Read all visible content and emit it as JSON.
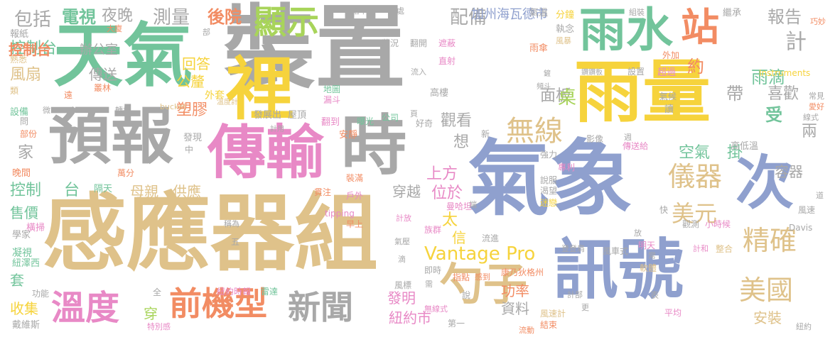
{
  "palette": {
    "gray": "#a8a8a8",
    "sand": "#dfc28a",
    "teal": "#72c49b",
    "blue": "#8fa0ce",
    "pink": "#e889c6",
    "yellow": "#f6d33c",
    "lime": "#a8d45a",
    "orange": "#f28c63"
  },
  "words": [
    {
      "text": "裝置",
      "color": "gray"
    },
    {
      "text": "感應器組",
      "color": "sand"
    },
    {
      "text": "天氣",
      "color": "teal"
    },
    {
      "text": "氣象",
      "color": "blue"
    },
    {
      "text": "雨量",
      "color": "yellow"
    },
    {
      "text": "預報",
      "color": "gray"
    },
    {
      "text": "傳輸",
      "color": "pink"
    },
    {
      "text": "裡",
      "color": "yellow"
    },
    {
      "text": "時",
      "color": "gray"
    },
    {
      "text": "訊號",
      "color": "blue"
    },
    {
      "text": "雨水",
      "color": "teal"
    },
    {
      "text": "次",
      "color": "blue"
    },
    {
      "text": "勺子",
      "color": "sand"
    },
    {
      "text": "溫度",
      "color": "pink"
    },
    {
      "text": "前機型",
      "color": "orange"
    },
    {
      "text": "新聞",
      "color": "gray"
    },
    {
      "text": "站",
      "color": "orange"
    },
    {
      "text": "顯示",
      "color": "lime"
    },
    {
      "text": "無線",
      "color": "sand"
    },
    {
      "text": "儀器",
      "color": "sand"
    },
    {
      "text": "精確",
      "color": "sand"
    },
    {
      "text": "美國",
      "color": "sand"
    },
    {
      "text": "美元",
      "color": "sand"
    },
    {
      "text": "Vantage Pro",
      "color": "yellow"
    },
    {
      "text": "控制台",
      "color": "teal"
    },
    {
      "text": "電視",
      "color": "teal"
    },
    {
      "text": "夜晚",
      "color": "gray"
    },
    {
      "text": "測量",
      "color": "gray"
    },
    {
      "text": "後院",
      "color": "orange"
    },
    {
      "text": "配備",
      "color": "gray"
    },
    {
      "text": "加州海瓦德市",
      "color": "blue"
    },
    {
      "text": "報告",
      "color": "gray"
    },
    {
      "text": "計",
      "color": "gray"
    },
    {
      "text": "雨滴",
      "color": "teal"
    },
    {
      "text": "約",
      "color": "orange"
    },
    {
      "text": "帶",
      "color": "gray"
    },
    {
      "text": "包括",
      "color": "gray"
    },
    {
      "text": "辦公室",
      "color": "gray"
    },
    {
      "text": "控制台",
      "color": "orange"
    },
    {
      "text": "風扇",
      "color": "sand"
    },
    {
      "text": "傳送",
      "color": "gray"
    },
    {
      "text": "回答",
      "color": "yellow"
    },
    {
      "text": "公釐",
      "color": "yellow"
    },
    {
      "text": "面板",
      "color": "gray"
    },
    {
      "text": "喜歡",
      "color": "gray"
    },
    {
      "text": "桌",
      "color": "lime"
    },
    {
      "text": "受",
      "color": "teal"
    },
    {
      "text": "塑膠",
      "color": "orange"
    },
    {
      "text": "觀看",
      "color": "gray"
    },
    {
      "text": "空氣",
      "color": "teal"
    },
    {
      "text": "掛",
      "color": "teal"
    },
    {
      "text": "容器",
      "color": "gray"
    },
    {
      "text": "兩",
      "color": "gray"
    },
    {
      "text": "想",
      "color": "gray"
    },
    {
      "text": "上方",
      "color": "pink"
    },
    {
      "text": "位於",
      "color": "pink"
    },
    {
      "text": "穿越",
      "color": "gray"
    },
    {
      "text": "母親",
      "color": "sand"
    },
    {
      "text": "供應",
      "color": "sand"
    },
    {
      "text": "售價",
      "color": "teal"
    },
    {
      "text": "太",
      "color": "yellow"
    },
    {
      "text": "信",
      "color": "yellow"
    },
    {
      "text": "發明",
      "color": "pink"
    },
    {
      "text": "功率",
      "color": "orange"
    },
    {
      "text": "資料",
      "color": "gray"
    },
    {
      "text": "安裝",
      "color": "sand"
    },
    {
      "text": "紐約市",
      "color": "pink"
    },
    {
      "text": "穿",
      "color": "lime"
    },
    {
      "text": "收集",
      "color": "yellow"
    },
    {
      "text": "套",
      "color": "teal"
    },
    {
      "text": "家",
      "color": "gray"
    },
    {
      "text": "台",
      "color": "teal"
    },
    {
      "text": "控制",
      "color": "teal"
    },
    {
      "text": "問",
      "color": "gray"
    },
    {
      "text": "設備",
      "color": "teal"
    },
    {
      "text": "報紙",
      "color": "gray"
    },
    {
      "text": "熟悉",
      "color": "sand"
    },
    {
      "text": "類",
      "color": "sand"
    },
    {
      "text": "遠",
      "color": "orange"
    },
    {
      "text": "叢林",
      "color": "orange"
    },
    {
      "text": "外套",
      "color": "yellow"
    },
    {
      "text": "發現",
      "color": "gray"
    },
    {
      "text": "中",
      "color": "gray"
    },
    {
      "text": "發展出",
      "color": "gray"
    },
    {
      "text": "屋頂",
      "color": "gray"
    },
    {
      "text": "翻到",
      "color": "pink"
    },
    {
      "text": "公司",
      "color": "teal"
    },
    {
      "text": "曝光",
      "color": "teal"
    },
    {
      "text": "安靜",
      "color": "orange"
    },
    {
      "text": "地圖",
      "color": "teal"
    },
    {
      "text": "漏斗",
      "color": "pink"
    },
    {
      "text": "高樓",
      "color": "gray"
    },
    {
      "text": "新",
      "color": "gray"
    },
    {
      "text": "好奇",
      "color": "gray"
    },
    {
      "text": "狀況",
      "color": "gray"
    },
    {
      "text": "翻開",
      "color": "gray"
    },
    {
      "text": "遮蔽",
      "color": "pink"
    },
    {
      "text": "直射",
      "color": "pink"
    },
    {
      "text": "流入",
      "color": "gray"
    },
    {
      "text": "雨傘",
      "color": "orange"
    },
    {
      "text": "氣溫",
      "color": "gray"
    },
    {
      "text": "分鐘",
      "color": "yellow"
    },
    {
      "text": "執念",
      "color": "gray"
    },
    {
      "text": "風暴",
      "color": "sand"
    },
    {
      "text": "組裝",
      "color": "gray"
    },
    {
      "text": "繼承",
      "color": "gray"
    },
    {
      "text": "巧妙",
      "color": "orange"
    },
    {
      "text": "外加",
      "color": "orange"
    },
    {
      "text": "超過",
      "color": "pink"
    },
    {
      "text": "設置",
      "color": "gray"
    },
    {
      "text": "Instruments",
      "color": "yellow"
    },
    {
      "text": "氣候",
      "color": "gray"
    },
    {
      "text": "讀",
      "color": "gray"
    },
    {
      "text": "影像",
      "color": "gray"
    },
    {
      "text": "傳送給",
      "color": "pink"
    },
    {
      "text": "高低溫",
      "color": "gray"
    },
    {
      "text": "強力",
      "color": "gray"
    },
    {
      "text": "專利",
      "color": "pink"
    },
    {
      "text": "說服",
      "color": "gray"
    },
    {
      "text": "渴望",
      "color": "gray"
    },
    {
      "text": "曼哈坦",
      "color": "pink"
    },
    {
      "text": "隔天",
      "color": "teal"
    },
    {
      "text": "萬分",
      "color": "orange"
    },
    {
      "text": "晚間",
      "color": "orange"
    },
    {
      "text": "橫掃",
      "color": "pink"
    },
    {
      "text": "學家",
      "color": "gray"
    },
    {
      "text": "凝視",
      "color": "teal"
    },
    {
      "text": "紐澤西",
      "color": "teal"
    },
    {
      "text": "戴維斯",
      "color": "gray"
    },
    {
      "text": "功能",
      "color": "gray"
    },
    {
      "text": "全",
      "color": "gray"
    },
    {
      "text": "五",
      "color": "gray"
    },
    {
      "text": "特別感",
      "color": "pink"
    },
    {
      "text": "紐約時報",
      "color": "pink"
    },
    {
      "text": "雷達",
      "color": "teal"
    },
    {
      "text": "即時",
      "color": "gray"
    },
    {
      "text": "指點",
      "color": "orange"
    },
    {
      "text": "感到",
      "color": "orange"
    },
    {
      "text": "風標",
      "color": "gray"
    },
    {
      "text": "第一",
      "color": "gray"
    },
    {
      "text": "無線式",
      "color": "pink"
    },
    {
      "text": "說",
      "color": "gray"
    },
    {
      "text": "結束",
      "color": "orange"
    },
    {
      "text": "流動",
      "color": "orange"
    },
    {
      "text": "風速計",
      "color": "sand"
    },
    {
      "text": "平均",
      "color": "pink"
    },
    {
      "text": "表",
      "color": "gray"
    },
    {
      "text": "整合",
      "color": "sand"
    },
    {
      "text": "計和",
      "color": "pink"
    },
    {
      "text": "風車式",
      "color": "gray"
    },
    {
      "text": "明天",
      "color": "pink"
    },
    {
      "text": "軟體",
      "color": "sand"
    },
    {
      "text": "快",
      "color": "gray"
    },
    {
      "text": "觀測",
      "color": "gray"
    },
    {
      "text": "小時候",
      "color": "pink"
    },
    {
      "text": "Davis",
      "color": "gray"
    },
    {
      "text": "道",
      "color": "gray"
    },
    {
      "text": "風速",
      "color": "gray"
    },
    {
      "text": "族群",
      "color": "pink"
    },
    {
      "text": "康乃狄格州",
      "color": "orange"
    },
    {
      "text": "早上",
      "color": "orange"
    },
    {
      "text": "貫注",
      "color": "orange"
    },
    {
      "text": "戶外",
      "color": "pink"
    },
    {
      "text": "裝滿",
      "color": "orange"
    },
    {
      "text": "tipping",
      "color": "pink"
    },
    {
      "text": "流進",
      "color": "gray"
    },
    {
      "text": "bucket",
      "color": "sand"
    },
    {
      "text": "轉杯",
      "color": "gray"
    },
    {
      "text": "部份",
      "color": "orange"
    },
    {
      "text": "微",
      "color": "gray"
    },
    {
      "text": "大廈",
      "color": "orange"
    },
    {
      "text": "常見",
      "color": "gray"
    },
    {
      "text": "愛好",
      "color": "orange"
    },
    {
      "text": "線式",
      "color": "gray"
    },
    {
      "text": "落下來",
      "color": "gray"
    },
    {
      "text": "身處",
      "color": "gray"
    },
    {
      "text": "鏟",
      "color": "gray"
    },
    {
      "text": "部",
      "color": "gray"
    },
    {
      "text": "計用",
      "color": "gray"
    },
    {
      "text": "溫度計",
      "color": "sand"
    },
    {
      "text": "鑽鑽板",
      "color": "gray"
    },
    {
      "text": "頻斗",
      "color": "gray"
    },
    {
      "text": "登登肩",
      "color": "gray"
    },
    {
      "text": "常",
      "color": "gray"
    },
    {
      "text": "放",
      "color": "gray"
    },
    {
      "text": "計部",
      "color": "gray"
    },
    {
      "text": "更",
      "color": "gray"
    },
    {
      "text": "週",
      "color": "gray"
    },
    {
      "text": "需",
      "color": "gray"
    },
    {
      "text": "滴",
      "color": "gray"
    },
    {
      "text": "氣壓",
      "color": "gray"
    },
    {
      "text": "計放",
      "color": "pink"
    },
    {
      "text": "迷戀",
      "color": "yellow"
    },
    {
      "text": "紐約",
      "color": "gray"
    },
    {
      "text": "頁",
      "color": "gray"
    },
    {
      "text": "稱為",
      "color": "gray"
    },
    {
      "text": "端",
      "color": "gray"
    }
  ]
}
